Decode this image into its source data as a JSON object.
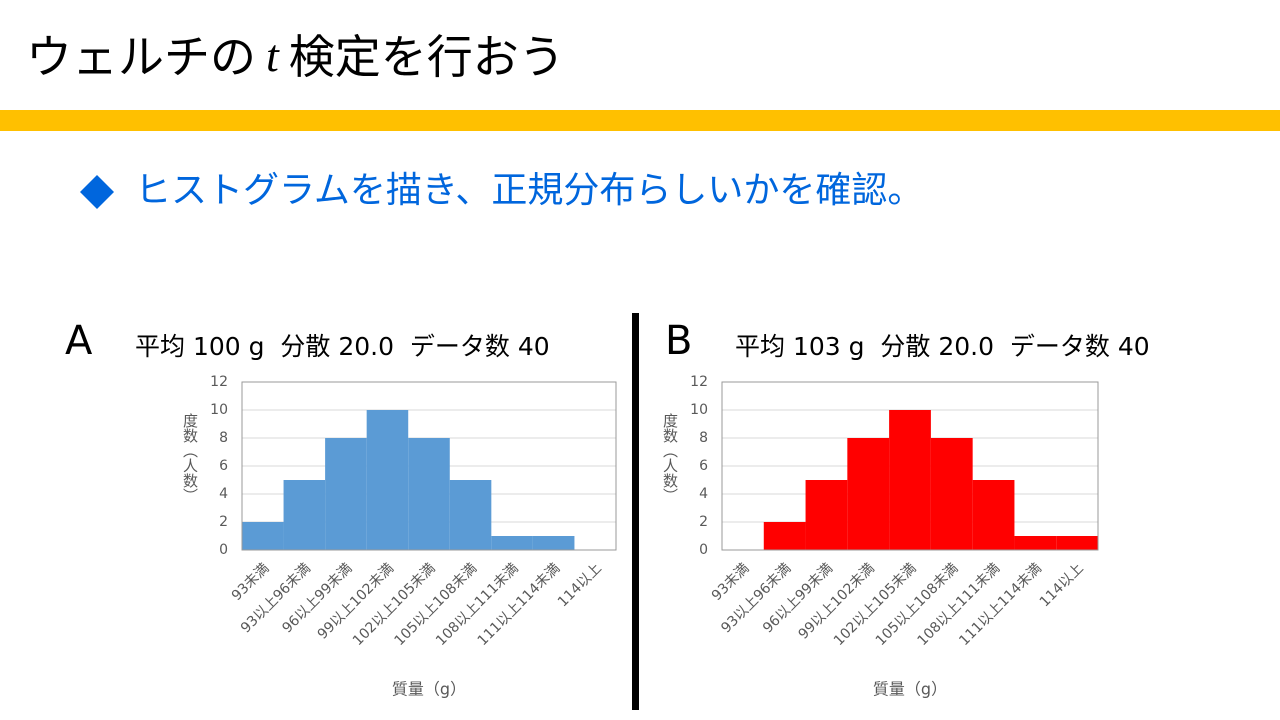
{
  "title_parts": [
    "ウェルチの",
    "t",
    "検定を行おう"
  ],
  "bullet": "ヒストグラムを描き、正規分布らしいかを確認。",
  "chart_data": [
    {
      "type": "bar",
      "label": "A",
      "subtitle": "平均 100 g  分散 20.0  データ数 40",
      "categories": [
        "93未満",
        "93以上96未満",
        "96以上99未満",
        "99以上102未満",
        "102以上105未満",
        "105以上108未満",
        "108以上111未満",
        "111以上114未満",
        "114以上"
      ],
      "values": [
        2,
        5,
        8,
        10,
        8,
        5,
        1,
        1,
        0
      ],
      "color": "#5b9bd5",
      "ylim": [
        0,
        12
      ],
      "yticks": [
        0,
        2,
        4,
        6,
        8,
        10,
        12
      ],
      "grid": true,
      "y_label": "度数（人数）",
      "x_label": "質量（g）"
    },
    {
      "type": "bar",
      "label": "B",
      "subtitle": "平均 103 g  分散 20.0  データ数 40",
      "categories": [
        "93未満",
        "93以上96未満",
        "96以上99未満",
        "99以上102未満",
        "102以上105未満",
        "105以上108未満",
        "108以上111未満",
        "111以上114未満",
        "114以上"
      ],
      "values": [
        0,
        2,
        5,
        8,
        10,
        8,
        5,
        1,
        1
      ],
      "color": "#ff0000",
      "ylim": [
        0,
        12
      ],
      "yticks": [
        0,
        2,
        4,
        6,
        8,
        10,
        12
      ],
      "grid": true,
      "y_label": "度数（人数）",
      "x_label": "質量（g）"
    }
  ]
}
